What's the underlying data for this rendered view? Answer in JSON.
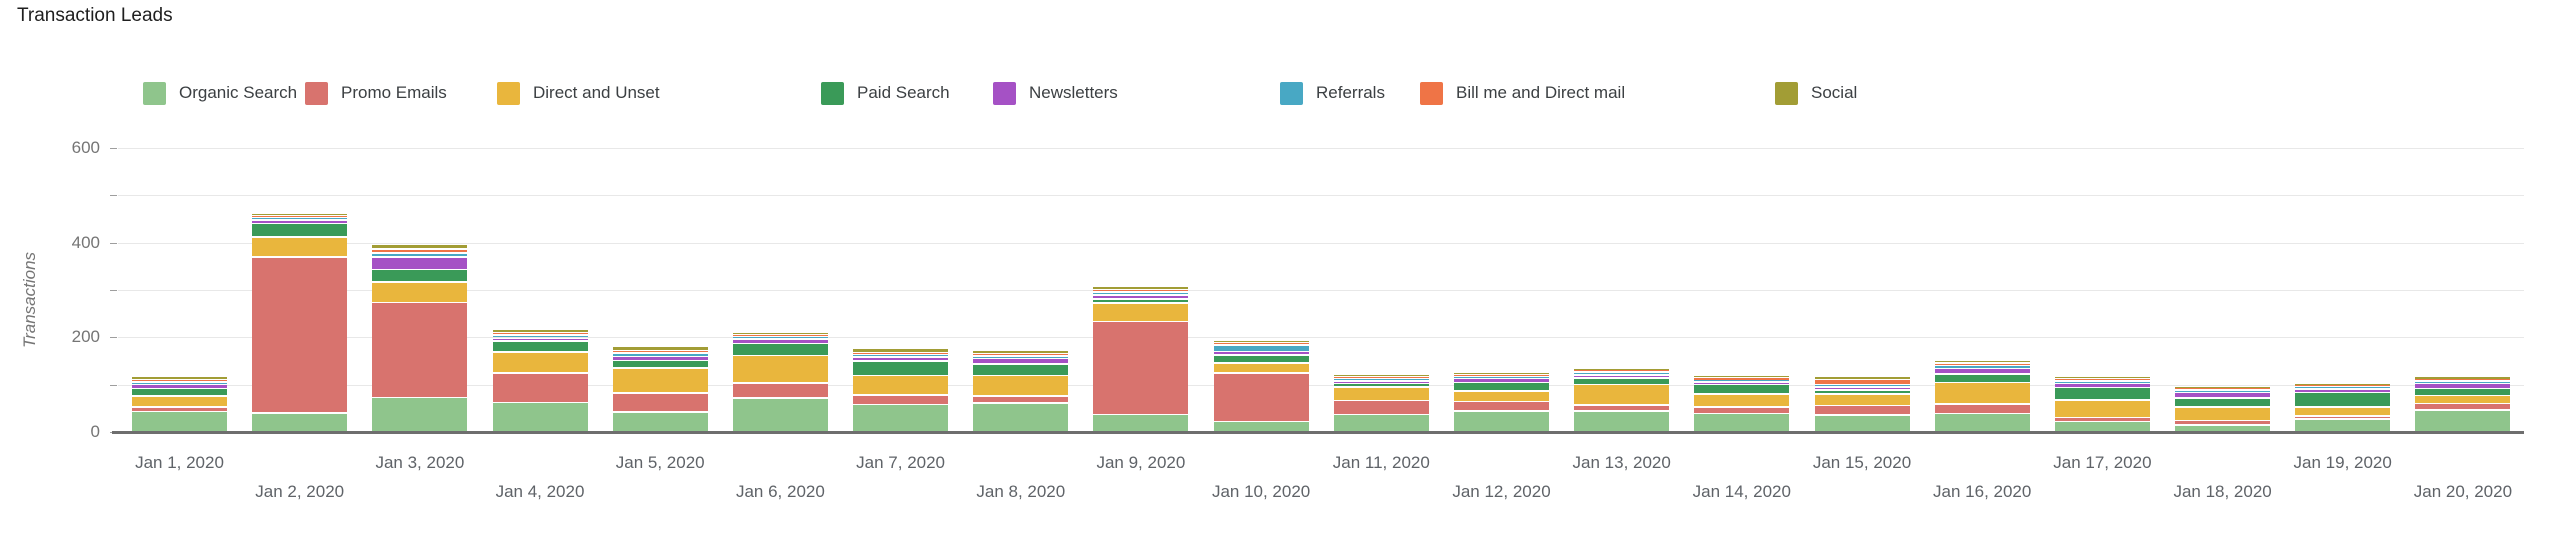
{
  "title": "Transaction Leads",
  "chart_data": {
    "type": "bar",
    "stacked": true,
    "title": "Transaction Leads",
    "xlabel": "",
    "ylabel": "Transactions",
    "ylim": [
      0,
      600
    ],
    "ytick_values": [
      0,
      200,
      400,
      600
    ],
    "ytick_labels": [
      "0",
      "200",
      "400",
      "600"
    ],
    "gridline_interval": 100,
    "grid": true,
    "legend_position": "top",
    "categories": [
      "Jan 1, 2020",
      "Jan 2, 2020",
      "Jan 3, 2020",
      "Jan 4, 2020",
      "Jan 5, 2020",
      "Jan 6, 2020",
      "Jan 7, 2020",
      "Jan 8, 2020",
      "Jan 9, 2020",
      "Jan 10, 2020",
      "Jan 11, 2020",
      "Jan 12, 2020",
      "Jan 13, 2020",
      "Jan 14, 2020",
      "Jan 15, 2020",
      "Jan 16, 2020",
      "Jan 17, 2020",
      "Jan 18, 2020",
      "Jan 19, 2020",
      "Jan 20, 2020"
    ],
    "series": [
      {
        "name": "Organic Search",
        "color": "#8FC58C",
        "values": [
          45,
          42,
          75,
          64,
          44,
          74,
          60,
          63,
          39,
          24,
          39,
          46,
          46,
          41,
          38,
          41,
          24,
          17,
          29,
          48
        ]
      },
      {
        "name": "Promo Emails",
        "color": "#D8736E",
        "values": [
          9,
          330,
          200,
          62,
          40,
          31,
          20,
          15,
          196,
          102,
          29,
          20,
          13,
          14,
          20,
          20,
          8,
          9,
          7,
          14
        ]
      },
      {
        "name": "Direct and Unset",
        "color": "#E9B63D",
        "values": [
          24,
          42,
          44,
          45,
          53,
          58,
          41,
          43,
          39,
          22,
          29,
          22,
          43,
          27,
          24,
          45,
          38,
          28,
          18,
          17
        ]
      },
      {
        "name": "Paid Search",
        "color": "#3A9A58",
        "values": [
          16,
          28,
          26,
          23,
          16,
          26,
          31,
          25,
          9,
          16,
          7,
          18,
          14,
          20,
          8,
          18,
          26,
          19,
          31,
          15
        ]
      },
      {
        "name": "Newsletters",
        "color": "#A551C5",
        "values": [
          8,
          8,
          26,
          7,
          8,
          9,
          8,
          11,
          8,
          8,
          6,
          9,
          6,
          5,
          7,
          12,
          8,
          12,
          8,
          10
        ]
      },
      {
        "name": "Referrals",
        "color": "#48A8C4",
        "values": [
          5,
          5,
          9,
          6,
          8,
          5,
          5,
          5,
          6,
          13,
          4,
          4,
          6,
          4,
          5,
          6,
          5,
          5,
          4,
          5
        ]
      },
      {
        "name": "Bill me and Direct mail",
        "color": "#EF7446",
        "values": [
          5,
          4,
          8,
          5,
          5,
          5,
          5,
          6,
          5,
          5,
          5,
          4,
          4,
          6,
          11,
          6,
          5,
          4,
          3,
          4
        ]
      },
      {
        "name": "Social",
        "color": "#A29D35",
        "values": [
          7,
          6,
          10,
          7,
          8,
          5,
          8,
          6,
          8,
          6,
          5,
          5,
          4,
          5,
          6,
          6,
          5,
          4,
          5,
          6
        ]
      }
    ]
  }
}
